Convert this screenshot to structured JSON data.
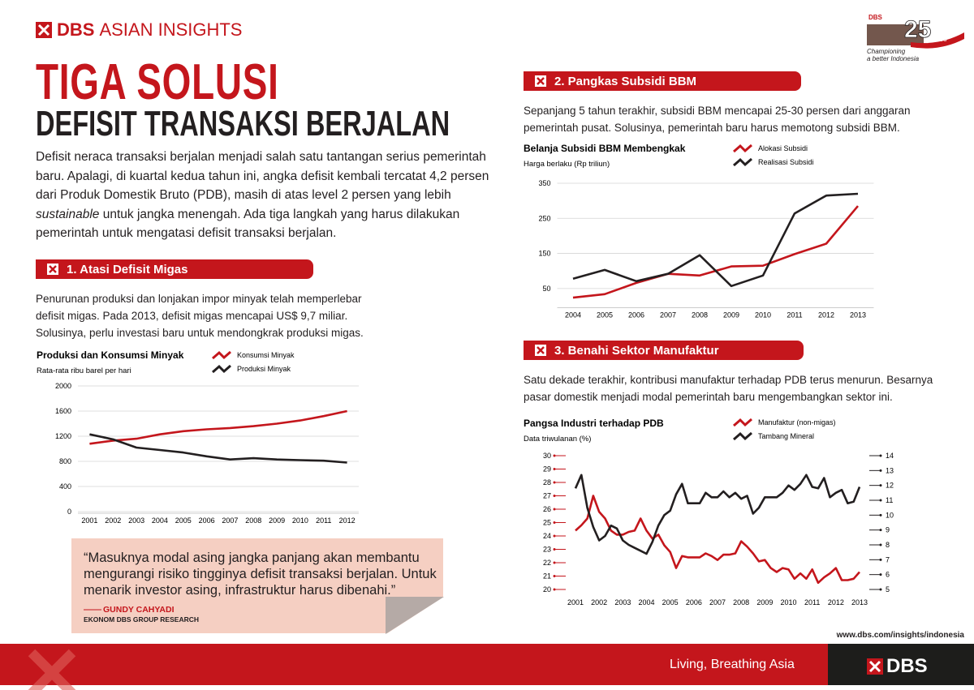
{
  "header": {
    "brand_bold": "DBS",
    "brand": "ASIAN INSIGHTS",
    "badge": {
      "logo": "DBS",
      "number": "25",
      "unit": "years",
      "tagline": [
        "Championing",
        "a better Indonesia"
      ]
    }
  },
  "title": {
    "line1": "TIGA SOLUSI",
    "line2": "DEFISIT TRANSAKSI BERJALAN"
  },
  "intro": {
    "before": "Defisit neraca transaksi berjalan menjadi salah satu tantangan serius pemerintah baru. Apalagi, di kuartal kedua tahun ini, angka defisit kembali tercatat 4,2 persen dari Produk Domestik Bruto (PDB), masih di atas level 2 persen yang lebih ",
    "italic": "sustainable",
    "after": " untuk jangka menengah. Ada tiga langkah yang harus dilakukan pemerintah untuk mengatasi defisit transaksi berjalan."
  },
  "sections": [
    {
      "heading": "1. Atasi Defisit Migas",
      "text": "Penurunan produksi dan lonjakan impor minyak telah memperlebar defisit migas. Pada 2013, defisit migas mencapai US$ 9,7 miliar. Solusinya, perlu investasi baru untuk mendongkrak produksi migas."
    },
    {
      "heading": "2. Pangkas Subsidi BBM",
      "text": "Sepanjang 5 tahun terakhir, subsidi BBM mencapai 25-30 persen dari anggaran pemerintah pusat. Solusinya, pemerintah baru harus memotong subsidi BBM."
    },
    {
      "heading": "3. Benahi Sektor Manufaktur",
      "text": "Satu dekade terakhir, kontribusi manufaktur terhadap PDB terus menurun. Besarnya pasar domestik menjadi modal pemerintah baru mengembangkan sektor ini."
    }
  ],
  "quote": {
    "text": "“Masuknya modal asing jangka panjang akan membantu mengurangi risiko tingginya defisit transaksi berjalan. Untuk menarik investor asing, infrastruktur harus dibenahi.”",
    "author": "GUNDY CAHYADI",
    "role": "EKONOM DBS GROUP RESEARCH"
  },
  "footer": {
    "url": "www.dbs.com/insights/indonesia",
    "slogan": "Living, Breathing Asia",
    "logo": "DBS"
  },
  "chart_data": [
    {
      "type": "line",
      "title": "Produksi dan Konsumsi Minyak",
      "subtitle": "Rata-rata ribu barel per hari",
      "categories": [
        "2001",
        "2002",
        "2003",
        "2004",
        "2005",
        "2006",
        "2007",
        "2008",
        "2009",
        "2010",
        "2011",
        "2012"
      ],
      "series": [
        {
          "name": "Konsumsi Minyak",
          "color": "#c4161c",
          "values": [
            1080,
            1130,
            1160,
            1230,
            1280,
            1310,
            1330,
            1360,
            1400,
            1450,
            1520,
            1600
          ]
        },
        {
          "name": "Produksi Minyak",
          "color": "#231f20",
          "values": [
            1230,
            1150,
            1020,
            980,
            940,
            880,
            830,
            850,
            830,
            820,
            810,
            780
          ]
        }
      ],
      "ylim": [
        0,
        2000
      ],
      "yticks": [
        0,
        400,
        800,
        1200,
        1600,
        2000
      ],
      "grid": true
    },
    {
      "type": "line",
      "title": "Belanja Subsidi BBM Membengkak",
      "subtitle": "Harga berlaku (Rp triliun)",
      "categories": [
        "2004",
        "2005",
        "2006",
        "2007",
        "2008",
        "2009",
        "2010",
        "2011",
        "2012",
        "2013"
      ],
      "series": [
        {
          "name": "Alokasi Subsidi",
          "color": "#c4161c",
          "values": [
            24,
            34,
            66,
            92,
            87,
            113,
            115,
            148,
            178,
            285
          ]
        },
        {
          "name": "Realisasi Subsidi",
          "color": "#231f20",
          "values": [
            78,
            103,
            71,
            92,
            145,
            57,
            87,
            264,
            315,
            320
          ]
        }
      ],
      "ylim": [
        0,
        350
      ],
      "yticks": [
        50,
        150,
        250,
        350
      ],
      "grid": true
    },
    {
      "type": "line",
      "title": "Pangsa Industri terhadap PDB",
      "subtitle": "Data triwulanan (%)",
      "x": [
        2001,
        2001.25,
        2001.5,
        2001.75,
        2002,
        2002.25,
        2002.5,
        2002.75,
        2003,
        2003.25,
        2003.5,
        2003.75,
        2004,
        2004.25,
        2004.5,
        2004.75,
        2005,
        2005.25,
        2005.5,
        2005.75,
        2006,
        2006.25,
        2006.5,
        2006.75,
        2007,
        2007.25,
        2007.5,
        2007.75,
        2008,
        2008.25,
        2008.5,
        2008.75,
        2009,
        2009.25,
        2009.5,
        2009.75,
        2010,
        2010.25,
        2010.5,
        2010.75,
        2011,
        2011.25,
        2011.5,
        2011.75,
        2012,
        2012.25,
        2012.5,
        2012.75,
        2013
      ],
      "series": [
        {
          "name": "Manufaktur (non-migas)",
          "color": "#c4161c",
          "axis": "y",
          "values": [
            24.4,
            24.8,
            25.3,
            27.0,
            25.8,
            25.3,
            24.4,
            24.1,
            24.1,
            24.3,
            24.4,
            25.3,
            24.4,
            23.8,
            24.1,
            23.3,
            22.8,
            21.6,
            22.5,
            22.4,
            22.4,
            22.4,
            22.7,
            22.5,
            22.2,
            22.6,
            22.6,
            22.7,
            23.6,
            23.2,
            22.7,
            22.1,
            22.2,
            21.6,
            21.3,
            21.6,
            21.5,
            20.8,
            21.2,
            20.8,
            21.5,
            20.5,
            20.9,
            21.2,
            21.6,
            20.7,
            20.7,
            20.8,
            21.3
          ]
        },
        {
          "name": "Tambang Mineral",
          "color": "#231f20",
          "axis": "y2",
          "values": [
            11.8,
            12.7,
            10.5,
            9.2,
            8.3,
            8.6,
            9.3,
            9.1,
            8.3,
            8.0,
            7.8,
            7.6,
            7.4,
            8.2,
            9.3,
            10.0,
            10.3,
            11.4,
            12.1,
            10.8,
            10.8,
            10.8,
            11.5,
            11.2,
            11.2,
            11.6,
            11.2,
            11.5,
            11.1,
            11.3,
            10.1,
            10.5,
            11.2,
            11.2,
            11.2,
            11.5,
            12.0,
            11.7,
            12.1,
            12.7,
            11.9,
            11.8,
            12.5,
            11.2,
            11.5,
            11.7,
            10.8,
            10.9,
            11.9
          ]
        }
      ],
      "xlim": [
        2001,
        2013
      ],
      "xticks": [
        2001,
        2002,
        2003,
        2004,
        2005,
        2006,
        2007,
        2008,
        2009,
        2010,
        2011,
        2012,
        2013
      ],
      "ylim": [
        20,
        30
      ],
      "yticks": [
        20,
        21,
        22,
        23,
        24,
        25,
        26,
        27,
        28,
        29,
        30
      ],
      "y2lim": [
        5,
        14
      ],
      "y2ticks": [
        5,
        6,
        7,
        8,
        9,
        10,
        11,
        12,
        13,
        14
      ],
      "grid": false
    }
  ]
}
